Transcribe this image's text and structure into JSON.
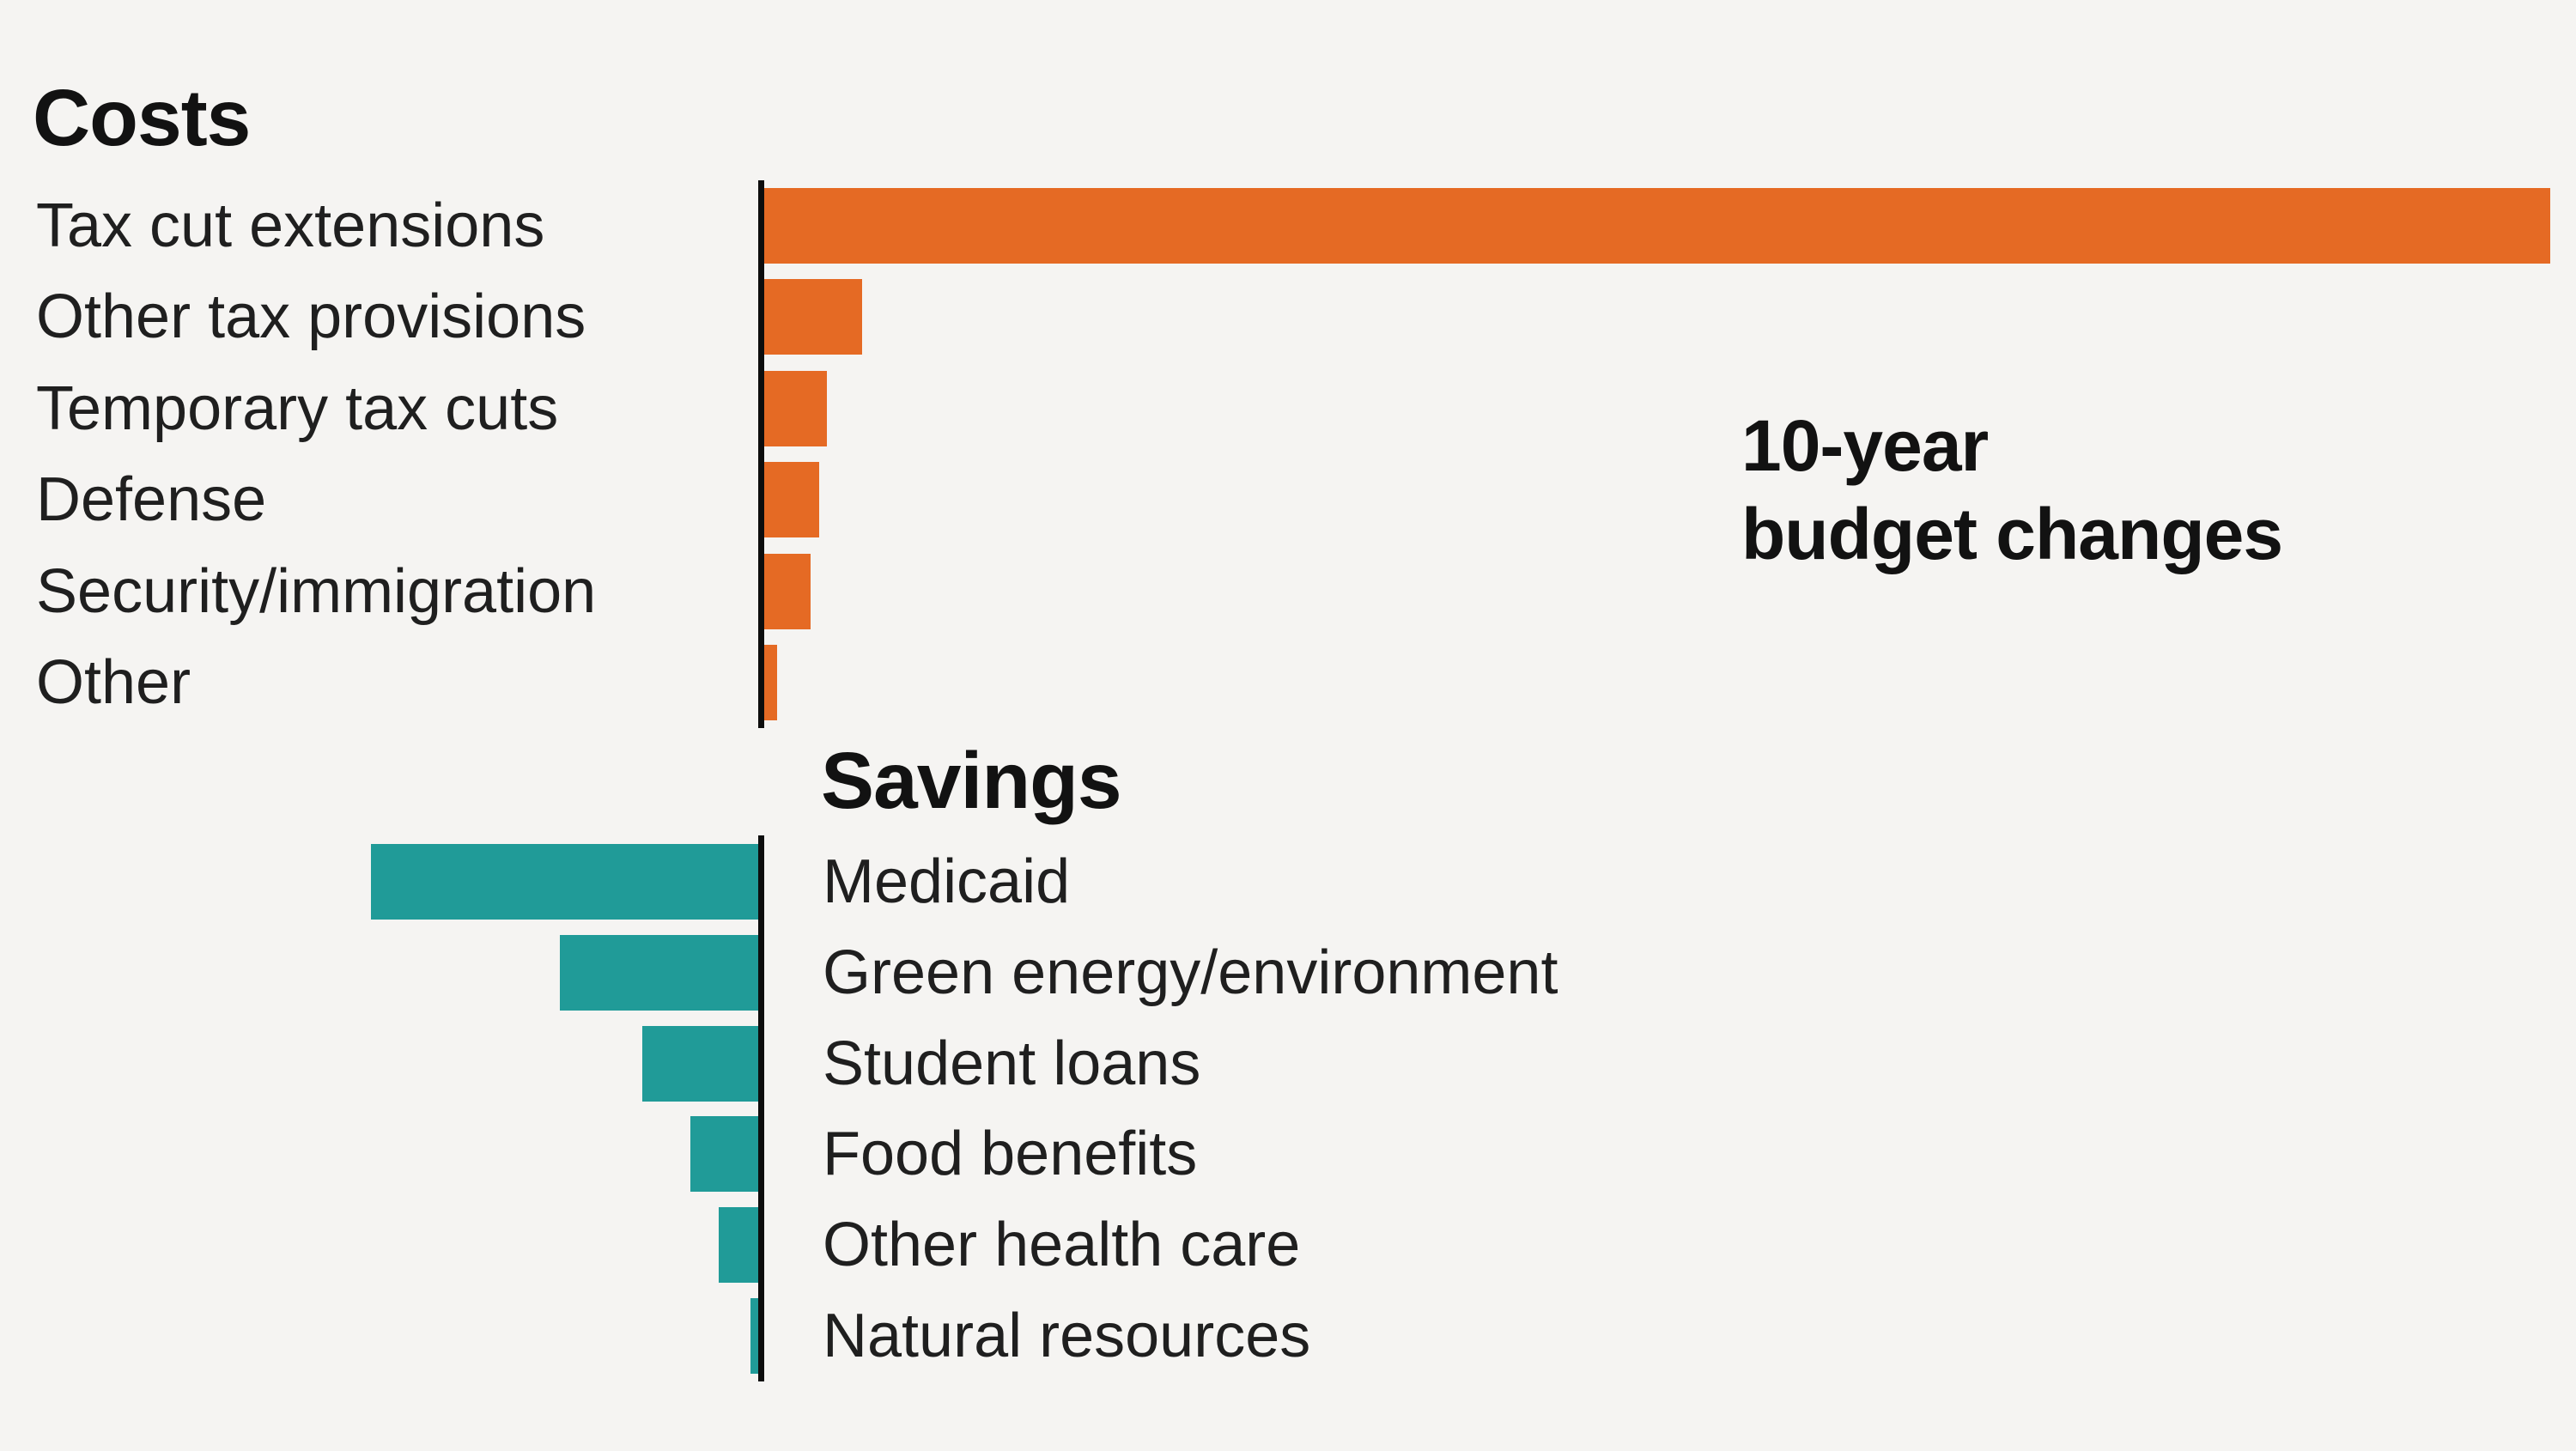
{
  "annotation": {
    "line1": "10-year",
    "line2": "budget changes"
  },
  "colors": {
    "background": "#f5f4f2",
    "costs_bar": "#e56a24",
    "savings_bar": "#209b98",
    "axis": "#0d0d0d",
    "title_text": "#121212",
    "label_text": "#1f1f1f"
  },
  "chart_data": {
    "type": "bar",
    "orientation": "horizontal-diverging",
    "title": "10-year budget changes",
    "xlabel": "",
    "ylabel": "",
    "grid": false,
    "legend_position": "none",
    "axis_tick_labels": "none (no numeric axis shown; values are relative bar lengths, longest bar = 100)",
    "sections": [
      {
        "name": "Costs",
        "side": "right",
        "color": "#e56a24",
        "categories": [
          "Tax cut extensions",
          "Other tax provisions",
          "Temporary tax cuts",
          "Defense",
          "Security/immigration",
          "Other"
        ],
        "values": [
          100,
          5.5,
          3.5,
          3.1,
          2.6,
          0.7
        ]
      },
      {
        "name": "Savings",
        "side": "left",
        "color": "#209b98",
        "categories": [
          "Medicaid",
          "Green energy/environment",
          "Student loans",
          "Food benefits",
          "Other health care",
          "Natural resources"
        ],
        "values": [
          21.7,
          11.1,
          6.5,
          3.8,
          2.2,
          0.45
        ]
      }
    ]
  }
}
